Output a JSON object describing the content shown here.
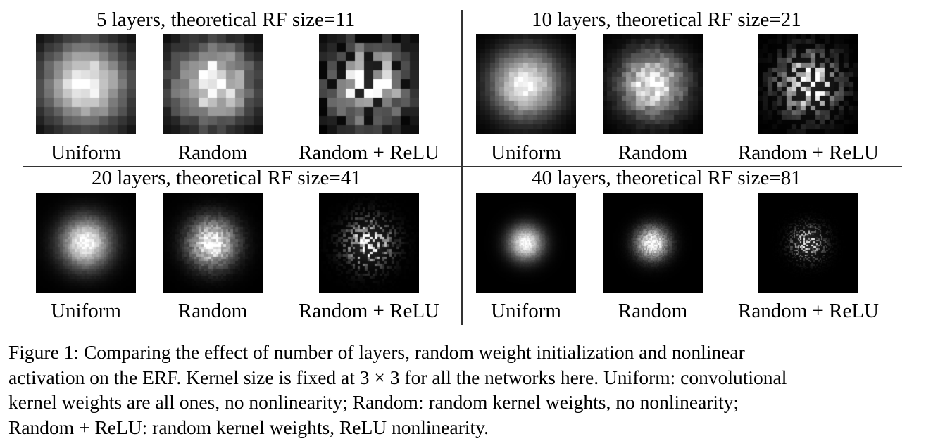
{
  "panels": [
    {
      "title": "5 layers, theoretical RF size=11",
      "grid": 11,
      "spread": 3.2,
      "seed": 11,
      "relu_sparsity": 0.25
    },
    {
      "title": "10 layers, theoretical RF size=21",
      "grid": 21,
      "spread": 4.8,
      "seed": 21,
      "relu_sparsity": 0.45
    },
    {
      "title": "20 layers, theoretical RF size=41",
      "grid": 41,
      "spread": 7.0,
      "seed": 41,
      "relu_sparsity": 0.55
    },
    {
      "title": "40 layers, theoretical RF size=81",
      "grid": 81,
      "spread": 9.5,
      "seed": 81,
      "relu_sparsity": 0.65
    }
  ],
  "labels": {
    "uniform": "Uniform",
    "random": "Random",
    "relu": "Random + ReLU"
  },
  "figure_caption": {
    "line1": "Figure 1: Comparing the effect of number of layers, random weight initialization and nonlinear",
    "line2": "activation on the ERF. Kernel size is fixed at 3 × 3 for all the networks here. Uniform: convolutional",
    "line3": "kernel weights are all ones, no nonlinearity; Random: random kernel weights, no nonlinearity;",
    "line4": "Random + ReLU: random kernel weights, ReLU nonlinearity."
  }
}
